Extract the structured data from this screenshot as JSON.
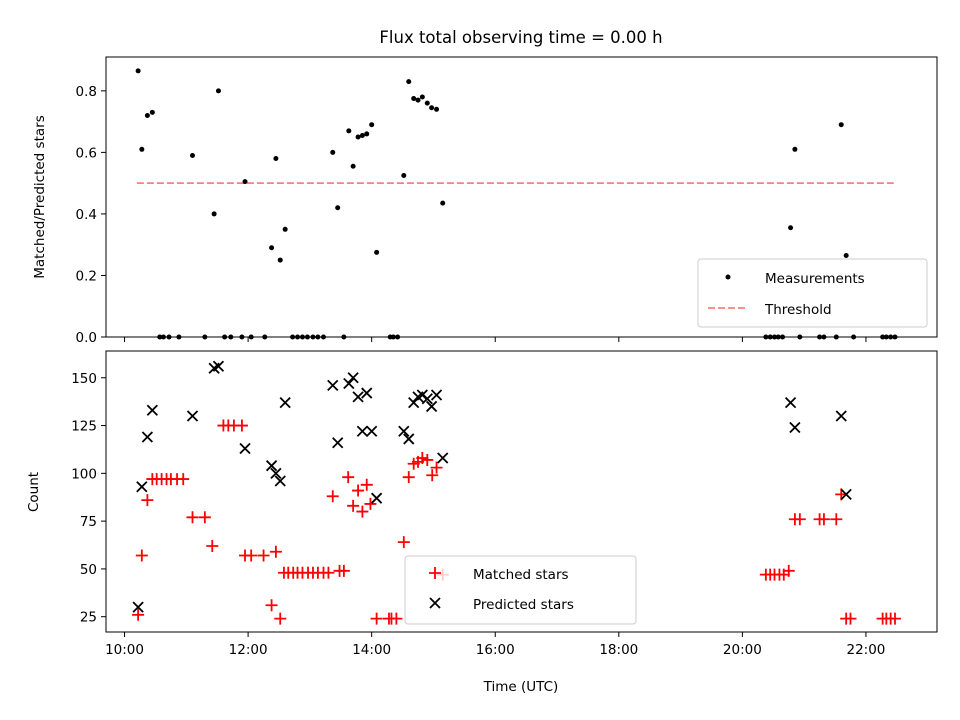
{
  "title": "Flux total observing time = 0.00 h",
  "chart_data": [
    {
      "type": "scatter",
      "title": "Flux total observing time = 0.00 h",
      "xlabel": "",
      "ylabel": "Matched/Predicted stars",
      "xlim": [
        9.7,
        23.15
      ],
      "ylim": [
        0,
        0.91
      ],
      "yticks": [
        0.0,
        0.2,
        0.4,
        0.6,
        0.8
      ],
      "ytick_labels": [
        "0.0",
        "0.2",
        "0.4",
        "0.6",
        "0.8"
      ],
      "grid": false,
      "legend_placement": "lower-right",
      "series": [
        {
          "name": "Measurements",
          "color": "#000000",
          "marker": "dot",
          "points": [
            [
              10.22,
              0.865
            ],
            [
              10.28,
              0.61
            ],
            [
              10.37,
              0.72
            ],
            [
              10.45,
              0.73
            ],
            [
              10.57,
              0.0
            ],
            [
              10.63,
              0.0
            ],
            [
              10.72,
              0.0
            ],
            [
              10.88,
              0.0
            ],
            [
              11.1,
              0.59
            ],
            [
              11.3,
              0.0
            ],
            [
              11.45,
              0.4
            ],
            [
              11.52,
              0.8
            ],
            [
              11.62,
              0.0
            ],
            [
              11.72,
              0.0
            ],
            [
              11.9,
              0.0
            ],
            [
              11.95,
              0.505
            ],
            [
              12.05,
              0.0
            ],
            [
              12.27,
              0.0
            ],
            [
              12.38,
              0.29
            ],
            [
              12.45,
              0.58
            ],
            [
              12.52,
              0.25
            ],
            [
              12.6,
              0.35
            ],
            [
              12.72,
              0.0
            ],
            [
              12.8,
              0.0
            ],
            [
              12.88,
              0.0
            ],
            [
              12.96,
              0.0
            ],
            [
              13.05,
              0.0
            ],
            [
              13.13,
              0.0
            ],
            [
              13.22,
              0.0
            ],
            [
              13.37,
              0.6
            ],
            [
              13.45,
              0.42
            ],
            [
              13.55,
              0.0
            ],
            [
              13.63,
              0.67
            ],
            [
              13.7,
              0.555
            ],
            [
              13.78,
              0.65
            ],
            [
              13.85,
              0.655
            ],
            [
              13.92,
              0.66
            ],
            [
              14.0,
              0.69
            ],
            [
              14.08,
              0.275
            ],
            [
              14.3,
              0.0
            ],
            [
              14.35,
              0.0
            ],
            [
              14.42,
              0.0
            ],
            [
              14.52,
              0.525
            ],
            [
              14.6,
              0.83
            ],
            [
              14.68,
              0.775
            ],
            [
              14.75,
              0.77
            ],
            [
              14.82,
              0.78
            ],
            [
              14.9,
              0.76
            ],
            [
              14.97,
              0.745
            ],
            [
              15.05,
              0.74
            ],
            [
              15.15,
              0.435
            ],
            [
              20.38,
              0.0
            ],
            [
              20.45,
              0.0
            ],
            [
              20.52,
              0.0
            ],
            [
              20.58,
              0.0
            ],
            [
              20.65,
              0.0
            ],
            [
              20.78,
              0.355
            ],
            [
              20.85,
              0.61
            ],
            [
              20.93,
              0.0
            ],
            [
              21.25,
              0.0
            ],
            [
              21.32,
              0.0
            ],
            [
              21.52,
              0.0
            ],
            [
              21.6,
              0.69
            ],
            [
              21.68,
              0.265
            ],
            [
              21.8,
              0.0
            ],
            [
              22.27,
              0.0
            ],
            [
              22.33,
              0.0
            ],
            [
              22.4,
              0.0
            ],
            [
              22.47,
              0.0
            ]
          ]
        },
        {
          "name": "Threshold",
          "color": "#ff7f7f",
          "style": "dashed",
          "x": [
            10.2,
            22.45
          ],
          "values": [
            0.5,
            0.5
          ]
        }
      ]
    },
    {
      "type": "scatter",
      "xlabel": "Time (UTC)",
      "ylabel": "Count",
      "xlim": [
        9.7,
        23.15
      ],
      "ylim": [
        17,
        164
      ],
      "xticks": [
        10,
        12,
        14,
        16,
        18,
        20,
        22
      ],
      "xtick_labels": [
        "10:00",
        "12:00",
        "14:00",
        "16:00",
        "18:00",
        "20:00",
        "22:00"
      ],
      "yticks": [
        25,
        50,
        75,
        100,
        125,
        150
      ],
      "ytick_labels": [
        "25",
        "50",
        "75",
        "100",
        "125",
        "150"
      ],
      "grid": false,
      "legend_placement": "lower-center",
      "series": [
        {
          "name": "Matched stars",
          "color": "#ff0000",
          "marker": "plus",
          "points": [
            [
              10.22,
              26
            ],
            [
              10.28,
              57
            ],
            [
              10.37,
              86
            ],
            [
              10.45,
              97
            ],
            [
              10.52,
              97
            ],
            [
              10.6,
              97
            ],
            [
              10.68,
              97
            ],
            [
              10.75,
              97
            ],
            [
              10.85,
              97
            ],
            [
              10.95,
              97
            ],
            [
              11.1,
              77
            ],
            [
              11.3,
              77
            ],
            [
              11.42,
              62
            ],
            [
              11.6,
              125
            ],
            [
              11.68,
              125
            ],
            [
              11.77,
              125
            ],
            [
              11.9,
              125
            ],
            [
              11.95,
              57
            ],
            [
              12.05,
              57
            ],
            [
              12.25,
              57
            ],
            [
              12.38,
              31
            ],
            [
              12.45,
              59
            ],
            [
              12.52,
              24
            ],
            [
              12.58,
              48
            ],
            [
              12.65,
              48
            ],
            [
              12.73,
              48
            ],
            [
              12.8,
              48
            ],
            [
              12.88,
              48
            ],
            [
              12.97,
              48
            ],
            [
              13.05,
              48
            ],
            [
              13.13,
              48
            ],
            [
              13.22,
              48
            ],
            [
              13.3,
              48
            ],
            [
              13.37,
              88
            ],
            [
              13.48,
              49
            ],
            [
              13.55,
              49
            ],
            [
              13.62,
              98
            ],
            [
              13.7,
              83
            ],
            [
              13.78,
              91
            ],
            [
              13.85,
              80
            ],
            [
              13.92,
              94
            ],
            [
              13.98,
              84
            ],
            [
              14.08,
              24
            ],
            [
              14.28,
              24
            ],
            [
              14.32,
              24
            ],
            [
              14.4,
              24
            ],
            [
              14.52,
              64
            ],
            [
              14.6,
              98
            ],
            [
              14.68,
              105
            ],
            [
              14.75,
              106
            ],
            [
              14.82,
              108
            ],
            [
              14.9,
              107
            ],
            [
              14.98,
              99
            ],
            [
              15.05,
              103
            ],
            [
              15.15,
              47
            ],
            [
              20.38,
              47
            ],
            [
              20.45,
              47
            ],
            [
              20.52,
              47
            ],
            [
              20.6,
              47
            ],
            [
              20.67,
              47
            ],
            [
              20.75,
              49
            ],
            [
              20.85,
              76
            ],
            [
              20.93,
              76
            ],
            [
              21.25,
              76
            ],
            [
              21.32,
              76
            ],
            [
              21.52,
              76
            ],
            [
              21.6,
              89
            ],
            [
              21.68,
              24
            ],
            [
              21.75,
              24
            ],
            [
              22.27,
              24
            ],
            [
              22.33,
              24
            ],
            [
              22.4,
              24
            ],
            [
              22.47,
              24
            ]
          ]
        },
        {
          "name": "Predicted stars",
          "color": "#000000",
          "marker": "x",
          "points": [
            [
              10.22,
              30
            ],
            [
              10.28,
              93
            ],
            [
              10.37,
              119
            ],
            [
              10.45,
              133
            ],
            [
              11.1,
              130
            ],
            [
              11.45,
              155
            ],
            [
              11.52,
              156
            ],
            [
              11.95,
              113
            ],
            [
              12.38,
              104
            ],
            [
              12.45,
              100
            ],
            [
              12.52,
              96
            ],
            [
              12.6,
              137
            ],
            [
              13.37,
              146
            ],
            [
              13.45,
              116
            ],
            [
              13.63,
              147
            ],
            [
              13.7,
              150
            ],
            [
              13.78,
              140
            ],
            [
              13.85,
              122
            ],
            [
              13.92,
              142
            ],
            [
              14.0,
              122
            ],
            [
              14.08,
              87
            ],
            [
              14.52,
              122
            ],
            [
              14.6,
              118
            ],
            [
              14.68,
              137
            ],
            [
              14.75,
              140
            ],
            [
              14.82,
              141
            ],
            [
              14.9,
              139
            ],
            [
              14.97,
              135
            ],
            [
              15.05,
              141
            ],
            [
              15.15,
              108
            ],
            [
              20.78,
              137
            ],
            [
              20.85,
              124
            ],
            [
              21.6,
              130
            ],
            [
              21.68,
              89
            ]
          ]
        }
      ]
    }
  ]
}
